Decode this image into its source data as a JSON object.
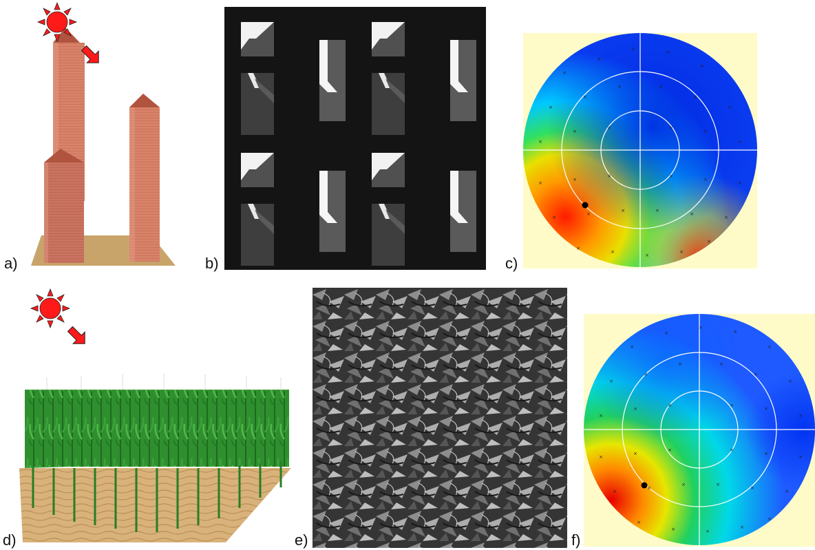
{
  "panels": [
    {
      "label": "a)",
      "content": "buildings scene"
    },
    {
      "label": "b)",
      "content": "buildings shadow image"
    },
    {
      "label": "c)",
      "content": "buildings polar map"
    },
    {
      "label": "d)",
      "content": "crop canopy scene"
    },
    {
      "label": "e)",
      "content": "canopy shadow image"
    },
    {
      "label": "f)",
      "content": "canopy polar map"
    }
  ],
  "colors": {
    "sun": "#ff1a1a",
    "arrow": "#ff1a1a",
    "brick": "#d9826a",
    "ground": "#c9a46a",
    "plant": "#2e8b2e",
    "map_background": "#fffbc8"
  }
}
